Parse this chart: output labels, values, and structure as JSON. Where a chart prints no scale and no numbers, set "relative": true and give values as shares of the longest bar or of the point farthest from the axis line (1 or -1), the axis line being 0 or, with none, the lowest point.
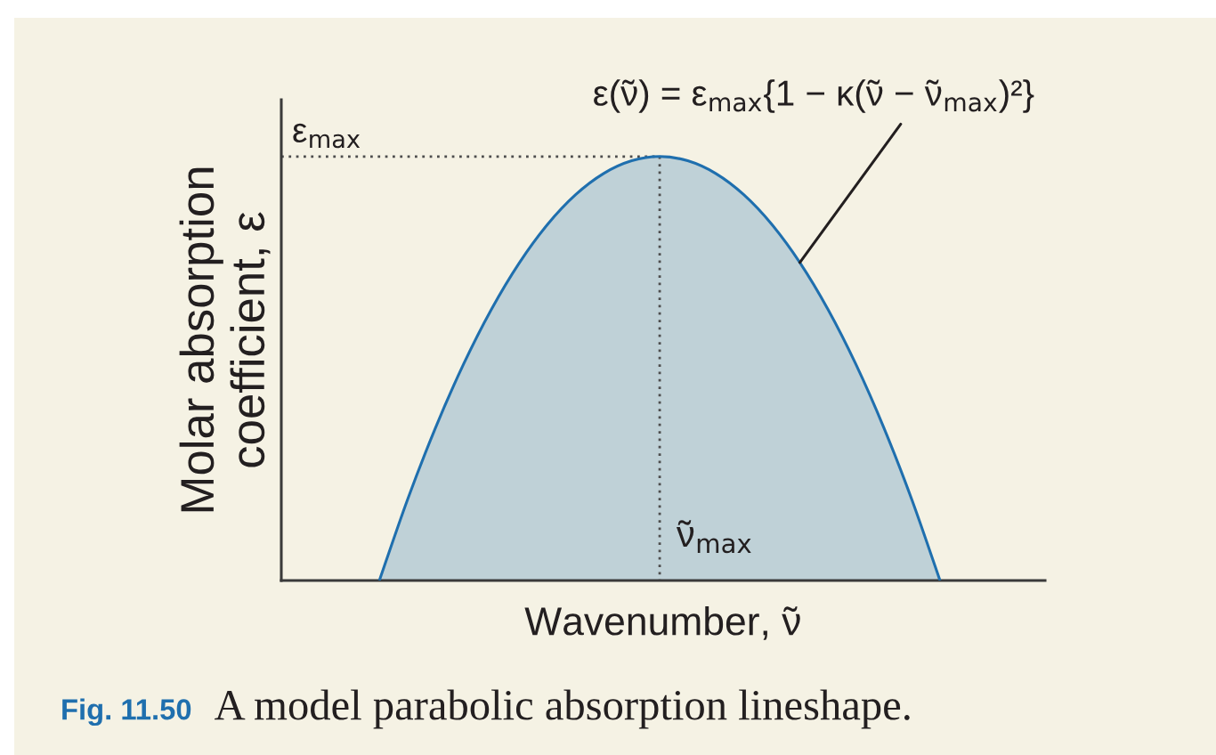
{
  "chart_data": {
    "type": "area",
    "relative": true,
    "xlabel": "Wavenumber, ν̃",
    "ylabel": "Molar absorption\ncoefficient, ε",
    "annotations": [
      "ν̃$_{max}$",
      "Fig. 11.50",
      "A model parabolic absorption lineshape."
    ],
    "categories": [
      null,
      null,
      null,
      null,
      null,
      null,
      null,
      null,
      null,
      null,
      null,
      null,
      null,
      null,
      null,
      null,
      null,
      null,
      null,
      null,
      null
    ],
    "series": [
      {
        "name": "ε(ν̃) = ε$_{max}${1 − κ(ν̃ − ν̃$_{max}$)²}",
        "color": "#1f6fae",
        "values": [
          0,
          0.19,
          0.36,
          0.51,
          0.64,
          0.75,
          0.84,
          0.91,
          0.96,
          0.99,
          1,
          0.99,
          0.96,
          0.91,
          0.84,
          0.75,
          0.64,
          0.51,
          0.36,
          0.19,
          0
        ]
      }
    ],
    "ref_lines": [
      {
        "axis": "y",
        "value": 1,
        "label": "ε$_{max}$",
        "line_style": "dotted",
        "color": "#4d4d4d"
      }
    ]
  }
}
